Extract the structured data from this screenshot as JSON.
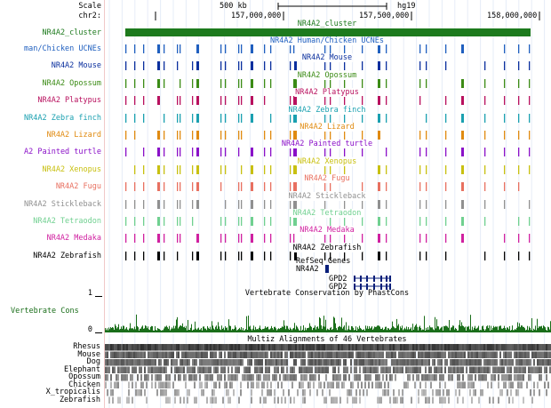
{
  "scale": {
    "label": "Scale",
    "bar_label": "500 kb",
    "assembly": "hg19"
  },
  "position": {
    "chrom": "chr2:",
    "ticks": [
      "157,000,000",
      "157,500,000",
      "158,000,000"
    ]
  },
  "cluster": {
    "label": "NR4A2_cluster",
    "center_label": "NR4A2_cluster",
    "color": "#1d7a1d"
  },
  "ucne_tracks": [
    {
      "label": "man/Chicken UCNEs",
      "center": "NR4A2 Human/Chicken UCNEs",
      "color": "#1f5fbf"
    },
    {
      "label": "NR4A2 Mouse",
      "center": "NR4A2 Mouse",
      "color": "#0a2f9e"
    },
    {
      "label": "NR4A2 Opossum",
      "center": "NR4A2 Opossum",
      "color": "#3b8b15"
    },
    {
      "label": "NR4A2 Platypus",
      "center": "NR4A2 Platypus",
      "color": "#b8105e"
    },
    {
      "label": "NR4A2 Zebra finch",
      "center": "NR4A2 Zebra finch",
      "color": "#1aa0b0"
    },
    {
      "label": "NR4A2 Lizard",
      "center": "NR4A2 Lizard",
      "color": "#e08a10"
    },
    {
      "label": "A2 Painted turtle",
      "center": "NR4A2 Painted turtle",
      "color": "#8a10c8"
    },
    {
      "label": "NR4A2 Xenopus",
      "center": "NR4A2 Xenopus",
      "color": "#c8c010"
    },
    {
      "label": "NR4A2 Fugu",
      "center": "NR4A2 Fugu",
      "color": "#e87060"
    },
    {
      "label": "NR4A2 Stickleback",
      "center": "NR4A2 Stickleback",
      "color": "#909090"
    },
    {
      "label": "NR4A2 Tetraodon",
      "center": "NR4A2 Tetraodon",
      "color": "#70d090"
    },
    {
      "label": "NR4A2 Medaka",
      "center": "NR4A2 Medaka",
      "color": "#d020a0"
    },
    {
      "label": "NR4A2 Zebrafish",
      "center": "NR4A2 Zebrafish",
      "color": "#000000"
    }
  ],
  "refseq": {
    "title": "RefSeq Genes",
    "genes": [
      "NR4A2",
      "GPD2",
      "GPD2"
    ],
    "color": "#0a1f7a"
  },
  "conservation": {
    "title": "Vertebrate Conservation by PhastCons",
    "track_label": "Vertebrate Cons",
    "y_max": "1",
    "y_min": "0",
    "color": "#1a6e1a"
  },
  "multiz": {
    "title": "Multiz Alignments of 46 Vertebrates",
    "species": [
      "Rhesus",
      "Mouse",
      "Dog",
      "Elephant",
      "Opossum",
      "Chicken",
      "X_tropicalis",
      "Zebrafish"
    ]
  }
}
